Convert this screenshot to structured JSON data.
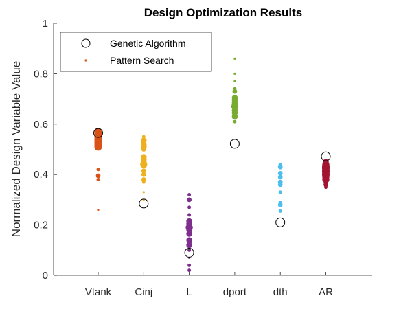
{
  "chart_data": {
    "type": "scatter",
    "title": "Design Optimization Results",
    "xlabel": "",
    "ylabel": "Normalized Design Variable Value",
    "categories": [
      "Vtank",
      "Cinj",
      "L",
      "dport",
      "dth",
      "AR"
    ],
    "ylim": [
      0,
      1
    ],
    "yticks": [
      0,
      0.2,
      0.4,
      0.6,
      0.8,
      1
    ],
    "ytick_labels": [
      "0",
      "0.2",
      "0.4",
      "0.6",
      "0.8",
      "1"
    ],
    "grid": false,
    "legend_placement": "top-left",
    "category_colors": [
      "#D95319",
      "#EDB120",
      "#7E2F8E",
      "#77AC30",
      "#4DBEEE",
      "#A2142F"
    ],
    "series": [
      {
        "name": "Genetic Algorithm",
        "marker": "open-circle",
        "values": [
          0.565,
          0.285,
          0.09,
          0.522,
          0.21,
          0.472
        ]
      },
      {
        "name": "Pattern Search",
        "marker": "filled-dot",
        "values": [
          [
            0.57,
            0.565,
            0.56,
            0.555,
            0.55,
            0.545,
            0.54,
            0.535,
            0.53,
            0.525,
            0.52,
            0.515,
            0.51,
            0.42,
            0.395,
            0.38,
            0.26
          ],
          [
            0.55,
            0.535,
            0.52,
            0.51,
            0.5,
            0.47,
            0.46,
            0.45,
            0.44,
            0.415,
            0.4,
            0.38,
            0.37,
            0.33,
            0.3
          ],
          [
            0.32,
            0.3,
            0.27,
            0.24,
            0.215,
            0.205,
            0.19,
            0.18,
            0.165,
            0.14,
            0.13,
            0.12,
            0.1,
            0.07,
            0.04,
            0.02
          ],
          [
            0.86,
            0.8,
            0.77,
            0.74,
            0.73,
            0.705,
            0.695,
            0.685,
            0.67,
            0.655,
            0.645,
            0.63,
            0.61
          ],
          [
            0.44,
            0.43,
            0.405,
            0.39,
            0.37,
            0.36,
            0.33,
            0.29,
            0.28,
            0.255
          ],
          [
            0.45,
            0.44,
            0.43,
            0.425,
            0.415,
            0.41,
            0.4,
            0.39,
            0.38,
            0.36,
            0.35
          ]
        ]
      }
    ]
  }
}
